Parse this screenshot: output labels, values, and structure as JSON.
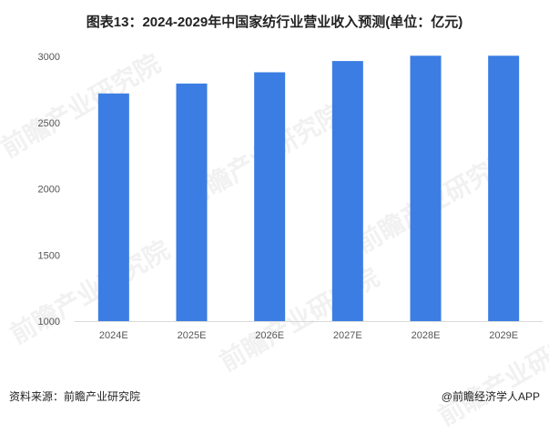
{
  "title": "图表13：2024-2029年中国家纺行业营业收入预测(单位：亿元)",
  "source": "资料来源：前瞻产业研究院",
  "credit": "@前瞻经济学人APP",
  "watermark": "前瞻产业研究院",
  "colors": {
    "bar": "#3b7de3",
    "axis": "#d9d9d9",
    "tick": "#555555"
  },
  "chart_data": {
    "type": "bar",
    "title": "图表13：2024-2029年中国家纺行业营业收入预测(单位：亿元)",
    "categories": [
      "2024E",
      "2025E",
      "2026E",
      "2027E",
      "2028E",
      "2029E"
    ],
    "values": [
      2720,
      2795,
      2880,
      2965,
      3005,
      3005
    ],
    "ylim": [
      1000,
      3000
    ],
    "yticks": [
      "1000",
      "1500",
      "2000",
      "2500",
      "3000"
    ],
    "xlabel": "",
    "ylabel": "",
    "grid": false
  }
}
